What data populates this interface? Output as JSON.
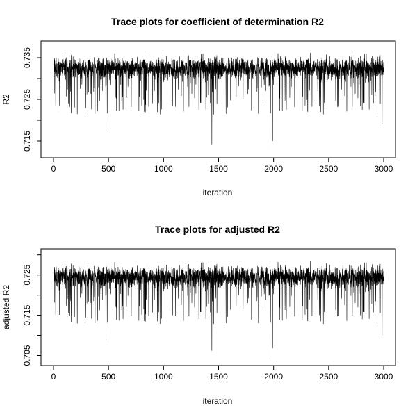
{
  "chart_data": [
    {
      "type": "line",
      "title": "Trace plots for coefficient of determination R2",
      "xlabel": "iteration",
      "ylabel": "R2",
      "xlim": [
        0,
        3000
      ],
      "ylim": [
        0.711,
        0.739
      ],
      "xticks": [
        0,
        500,
        1000,
        1500,
        2000,
        2500,
        3000
      ],
      "xtick_labels": [
        "0",
        "500",
        "1000",
        "1500",
        "2000",
        "2500",
        "3000"
      ],
      "yticks": [
        0.715,
        0.725,
        0.735
      ],
      "ytick_labels": [
        "0.715",
        "0.725",
        "0.735"
      ],
      "grid": false,
      "legend": "none",
      "color": "#000000",
      "series_summary": {
        "n_iterations": 3000,
        "mean": 0.7325,
        "typical_low": 0.727,
        "typical_high": 0.7375,
        "min": 0.7115,
        "max": 0.7392
      },
      "notable_dips": [
        {
          "x": 475,
          "y": 0.7175
        },
        {
          "x": 1438,
          "y": 0.7142
        },
        {
          "x": 1948,
          "y": 0.7115
        },
        {
          "x": 1990,
          "y": 0.715
        },
        {
          "x": 2985,
          "y": 0.719
        }
      ]
    },
    {
      "type": "line",
      "title": "Trace plots for adjusted R2",
      "xlabel": "iteration",
      "ylabel": "adjusted R2",
      "xlim": [
        0,
        3000
      ],
      "ylim": [
        0.7025,
        0.7315
      ],
      "xticks": [
        0,
        500,
        1000,
        1500,
        2000,
        2500,
        3000
      ],
      "xtick_labels": [
        "0",
        "500",
        "1000",
        "1500",
        "2000",
        "2500",
        "3000"
      ],
      "yticks": [
        0.705,
        0.715,
        0.725
      ],
      "ytick_labels": [
        "0.705",
        "0.715",
        "0.725"
      ],
      "grid": false,
      "legend": "none",
      "color": "#000000",
      "series_summary": {
        "n_iterations": 3000,
        "mean": 0.7245,
        "typical_low": 0.7185,
        "typical_high": 0.7295,
        "min": 0.704,
        "max": 0.731
      },
      "notable_dips": [
        {
          "x": 475,
          "y": 0.709
        },
        {
          "x": 1438,
          "y": 0.7062
        },
        {
          "x": 1948,
          "y": 0.704
        },
        {
          "x": 1990,
          "y": 0.7068
        },
        {
          "x": 2985,
          "y": 0.71
        }
      ]
    }
  ]
}
